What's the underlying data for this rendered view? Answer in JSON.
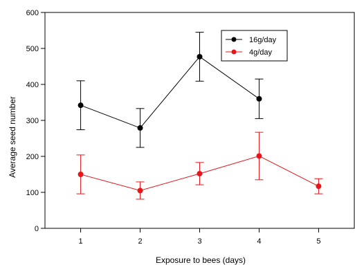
{
  "chart_data": {
    "type": "line",
    "xlabel": "Exposure to bees (days)",
    "ylabel": "Average seed number",
    "xlim": [
      0.4,
      5.6
    ],
    "ylim": [
      0,
      600
    ],
    "x_ticks": [
      1,
      2,
      3,
      4,
      5
    ],
    "y_ticks": [
      0,
      100,
      200,
      300,
      400,
      500,
      600
    ],
    "grid": false,
    "legend_position": "top-right",
    "series": [
      {
        "name": "16g/day",
        "color": "#000000",
        "x": [
          1,
          2,
          3,
          4
        ],
        "values": [
          342,
          279,
          477,
          360
        ],
        "error": [
          68,
          54,
          68,
          55
        ]
      },
      {
        "name": "4g/day",
        "color": "#e8141a",
        "x": [
          1,
          2,
          3,
          4,
          5
        ],
        "values": [
          150,
          105,
          152,
          201,
          117
        ],
        "error": [
          54,
          24,
          31,
          66,
          21
        ]
      }
    ]
  }
}
